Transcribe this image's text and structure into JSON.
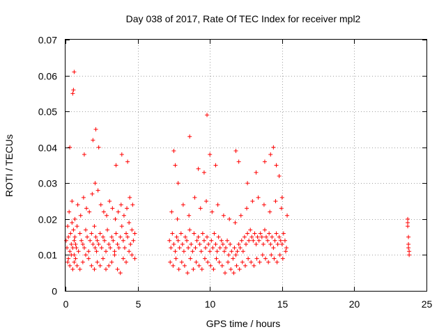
{
  "chart_data": {
    "type": "scatter",
    "title": "Day 038 of 2017, Rate Of TEC Index for receiver mpl2",
    "xlabel": "GPS time / hours",
    "ylabel": "ROTI / TECUs",
    "xlim": [
      0,
      25
    ],
    "ylim": [
      0,
      0.07
    ],
    "xticks": [
      0,
      5,
      10,
      15,
      20,
      25
    ],
    "yticks": [
      0,
      0.01,
      0.02,
      0.03,
      0.04,
      0.05,
      0.06,
      0.07
    ],
    "xtick_labels": [
      "0",
      "5",
      "10",
      "15",
      "20",
      "25"
    ],
    "ytick_labels": [
      "0",
      "0.01",
      "0.02",
      "0.03",
      "0.04",
      "0.05",
      "0.06",
      "0.07"
    ],
    "grid": true,
    "marker": "plus",
    "color": "#ff0000",
    "series": [
      {
        "name": "ROTI",
        "x": [
          0.05,
          0.1,
          0.15,
          0.2,
          0.3,
          0.35,
          0.4,
          0.45,
          0.5,
          0.55,
          0.6,
          0.6,
          0.65,
          0.7,
          0.75,
          0.8,
          0.9,
          1.0,
          1.1,
          1.2,
          1.3,
          1.4,
          1.5,
          1.6,
          1.7,
          1.8,
          1.9,
          2.0,
          2.05,
          2.1,
          2.15,
          2.2,
          2.3,
          2.4,
          2.5,
          2.6,
          2.7,
          2.8,
          2.9,
          3.0,
          3.1,
          3.2,
          3.3,
          3.4,
          3.5,
          3.6,
          3.7,
          3.8,
          3.9,
          4.0,
          4.1,
          4.2,
          4.3,
          4.4,
          4.5,
          4.6,
          4.7,
          4.8,
          0.15,
          0.2,
          0.3,
          0.4,
          0.5,
          0.6,
          0.7,
          0.8,
          1.0,
          1.2,
          1.4,
          1.6,
          1.8,
          2.0,
          2.2,
          2.4,
          2.6,
          2.8,
          3.0,
          3.2,
          3.4,
          3.6,
          3.8,
          4.0,
          4.2,
          4.4,
          4.6,
          4.8,
          0.25,
          0.45,
          0.65,
          0.85,
          1.05,
          1.25,
          1.45,
          1.65,
          1.85,
          2.05,
          2.25,
          2.45,
          2.65,
          2.85,
          3.05,
          3.25,
          3.45,
          3.65,
          3.85,
          4.05,
          4.25,
          4.45,
          4.65,
          0.3,
          0.5,
          0.55,
          0.6,
          1.3,
          1.9,
          2.1,
          2.3,
          3.5,
          3.9,
          4.3,
          7.2,
          7.3,
          7.4,
          7.5,
          7.6,
          7.7,
          7.8,
          7.9,
          8.0,
          8.1,
          8.2,
          8.3,
          8.4,
          8.5,
          8.6,
          8.7,
          8.8,
          8.9,
          9.0,
          9.1,
          9.2,
          9.3,
          9.4,
          9.5,
          9.6,
          9.7,
          9.8,
          9.9,
          10.0,
          10.1,
          10.2,
          10.3,
          10.4,
          10.5,
          10.6,
          10.7,
          10.8,
          10.9,
          11.0,
          11.1,
          11.2,
          11.3,
          11.4,
          11.5,
          11.6,
          11.7,
          11.8,
          11.9,
          12.0,
          12.1,
          12.2,
          12.3,
          12.4,
          12.5,
          12.6,
          12.7,
          12.8,
          12.9,
          13.0,
          13.1,
          13.2,
          13.3,
          13.4,
          13.5,
          13.6,
          13.7,
          13.8,
          13.9,
          14.0,
          14.1,
          14.2,
          14.3,
          14.4,
          14.5,
          14.6,
          14.7,
          14.8,
          14.9,
          15.0,
          15.1,
          15.2,
          15.3,
          7.25,
          7.45,
          7.65,
          7.85,
          8.05,
          8.25,
          8.45,
          8.65,
          8.85,
          9.05,
          9.25,
          9.45,
          9.65,
          9.85,
          10.05,
          10.25,
          10.45,
          10.65,
          10.85,
          11.05,
          11.25,
          11.45,
          11.65,
          11.85,
          12.05,
          12.25,
          12.45,
          12.65,
          12.85,
          13.05,
          13.25,
          13.45,
          13.65,
          13.85,
          14.05,
          14.25,
          14.45,
          14.65,
          14.85,
          15.05,
          15.25,
          7.35,
          7.75,
          8.15,
          8.55,
          8.95,
          9.35,
          9.75,
          10.15,
          10.55,
          10.95,
          11.35,
          11.75,
          12.15,
          12.55,
          12.95,
          13.35,
          13.75,
          14.15,
          14.55,
          14.95,
          15.35,
          7.5,
          7.6,
          7.8,
          8.6,
          9.2,
          9.6,
          9.8,
          10.0,
          10.4,
          11.8,
          12.0,
          12.6,
          13.2,
          13.8,
          14.2,
          14.4,
          14.6,
          14.8,
          15.0,
          23.7,
          23.7,
          23.75,
          23.75,
          23.8,
          23.8,
          23.7,
          23.75
        ],
        "y": [
          0.014,
          0.012,
          0.018,
          0.015,
          0.011,
          0.016,
          0.013,
          0.019,
          0.012,
          0.017,
          0.014,
          0.01,
          0.015,
          0.013,
          0.012,
          0.018,
          0.011,
          0.016,
          0.014,
          0.013,
          0.012,
          0.017,
          0.015,
          0.011,
          0.014,
          0.016,
          0.013,
          0.018,
          0.012,
          0.015,
          0.011,
          0.014,
          0.013,
          0.016,
          0.012,
          0.015,
          0.014,
          0.011,
          0.017,
          0.013,
          0.012,
          0.015,
          0.014,
          0.011,
          0.016,
          0.013,
          0.012,
          0.015,
          0.018,
          0.014,
          0.012,
          0.016,
          0.015,
          0.019,
          0.013,
          0.017,
          0.014,
          0.016,
          0.008,
          0.009,
          0.007,
          0.01,
          0.006,
          0.008,
          0.009,
          0.007,
          0.006,
          0.008,
          0.01,
          0.009,
          0.007,
          0.006,
          0.008,
          0.007,
          0.009,
          0.006,
          0.007,
          0.008,
          0.01,
          0.006,
          0.005,
          0.009,
          0.008,
          0.011,
          0.01,
          0.009,
          0.022,
          0.025,
          0.02,
          0.024,
          0.021,
          0.026,
          0.023,
          0.022,
          0.027,
          0.03,
          0.028,
          0.024,
          0.022,
          0.021,
          0.025,
          0.023,
          0.02,
          0.022,
          0.024,
          0.021,
          0.023,
          0.026,
          0.024,
          0.04,
          0.055,
          0.056,
          0.061,
          0.038,
          0.042,
          0.045,
          0.04,
          0.035,
          0.038,
          0.036,
          0.014,
          0.012,
          0.016,
          0.013,
          0.011,
          0.015,
          0.014,
          0.012,
          0.016,
          0.013,
          0.011,
          0.015,
          0.014,
          0.012,
          0.017,
          0.013,
          0.011,
          0.016,
          0.012,
          0.014,
          0.015,
          0.013,
          0.011,
          0.016,
          0.014,
          0.012,
          0.015,
          0.013,
          0.011,
          0.014,
          0.012,
          0.016,
          0.013,
          0.011,
          0.015,
          0.012,
          0.014,
          0.013,
          0.011,
          0.012,
          0.014,
          0.01,
          0.013,
          0.011,
          0.009,
          0.012,
          0.01,
          0.011,
          0.013,
          0.012,
          0.014,
          0.011,
          0.015,
          0.013,
          0.016,
          0.014,
          0.017,
          0.015,
          0.014,
          0.016,
          0.013,
          0.015,
          0.014,
          0.016,
          0.015,
          0.013,
          0.017,
          0.015,
          0.014,
          0.016,
          0.013,
          0.015,
          0.012,
          0.014,
          0.016,
          0.013,
          0.015,
          0.014,
          0.013,
          0.016,
          0.014,
          0.012,
          0.008,
          0.007,
          0.009,
          0.006,
          0.008,
          0.007,
          0.005,
          0.009,
          0.006,
          0.008,
          0.007,
          0.006,
          0.009,
          0.008,
          0.007,
          0.006,
          0.009,
          0.008,
          0.007,
          0.005,
          0.008,
          0.006,
          0.005,
          0.007,
          0.006,
          0.008,
          0.007,
          0.009,
          0.008,
          0.007,
          0.009,
          0.008,
          0.01,
          0.009,
          0.008,
          0.01,
          0.009,
          0.008,
          0.01,
          0.009,
          0.011,
          0.022,
          0.02,
          0.024,
          0.021,
          0.026,
          0.023,
          0.025,
          0.022,
          0.024,
          0.021,
          0.02,
          0.019,
          0.021,
          0.023,
          0.025,
          0.026,
          0.024,
          0.022,
          0.025,
          0.023,
          0.021,
          0.039,
          0.035,
          0.03,
          0.043,
          0.034,
          0.033,
          0.049,
          0.038,
          0.035,
          0.039,
          0.036,
          0.03,
          0.033,
          0.036,
          0.038,
          0.04,
          0.035,
          0.032,
          0.026,
          0.02,
          0.018,
          0.015,
          0.013,
          0.011,
          0.01,
          0.019,
          0.012
        ]
      }
    ]
  }
}
